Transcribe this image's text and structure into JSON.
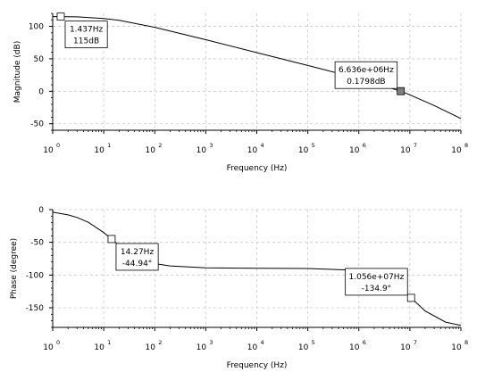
{
  "chart_data": [
    {
      "type": "line",
      "xlabel": "Frequency (Hz)",
      "ylabel": "Magnitude (dB)",
      "xscale": "log",
      "xlim": [
        1,
        100000000
      ],
      "ylim": [
        -60,
        120
      ],
      "grid": true,
      "x_tick_base": "10",
      "x_tick_exponents": [
        "0",
        "1",
        "2",
        "3",
        "4",
        "5",
        "6",
        "7",
        "8"
      ],
      "y_ticks": [
        "100",
        "50",
        "0",
        "-50"
      ],
      "series": [
        {
          "x": [
            1,
            3,
            10,
            20,
            50,
            100,
            1000,
            10000,
            100000,
            1000000,
            6636000,
            10000000,
            30000000,
            100000000
          ],
          "y": [
            115,
            114.6,
            112,
            109.4,
            103.2,
            98.5,
            79.5,
            59.6,
            39.7,
            19.5,
            0.18,
            -5.5,
            -22,
            -42
          ],
          "color": "#000000"
        }
      ],
      "datatips": [
        {
          "x": 1.437,
          "y": 115,
          "line1": "1.437Hz",
          "line2": "115dB",
          "box": "below-right"
        },
        {
          "x": 6636000,
          "y": 0.1798,
          "line1": "6.636e+06Hz",
          "line2": "0.1798dB",
          "box": "above-left",
          "selected": true
        }
      ]
    },
    {
      "type": "line",
      "xlabel": "Frequency (Hz)",
      "ylabel": "Phase (degree)",
      "xscale": "log",
      "xlim": [
        1,
        100000000
      ],
      "ylim": [
        -180,
        0
      ],
      "grid": true,
      "x_tick_base": "10",
      "x_tick_exponents": [
        "0",
        "1",
        "2",
        "3",
        "4",
        "5",
        "6",
        "7",
        "8"
      ],
      "y_ticks": [
        "0",
        "-50",
        "-100",
        "-150"
      ],
      "series": [
        {
          "x": [
            1,
            2,
            3,
            5,
            10,
            14.27,
            20,
            30,
            50,
            100,
            200,
            1000,
            10000,
            100000,
            1000000,
            3000000,
            10560000,
            20000000,
            50000000,
            100000000
          ],
          "y": [
            -4,
            -8,
            -12,
            -19.3,
            -35,
            -44.94,
            -54.5,
            -64.6,
            -74.8,
            -82.5,
            -86,
            -89,
            -89.6,
            -90,
            -92.8,
            -98,
            -134.9,
            -155,
            -172,
            -177
          ],
          "color": "#000000"
        }
      ],
      "datatips": [
        {
          "x": 14.27,
          "y": -44.94,
          "line1": "14.27Hz",
          "line2": "-44.94°",
          "box": "below-right"
        },
        {
          "x": 10560000,
          "y": -134.9,
          "line1": "1.056e+07Hz",
          "line2": "-134.9°",
          "box": "above-left"
        }
      ]
    }
  ]
}
